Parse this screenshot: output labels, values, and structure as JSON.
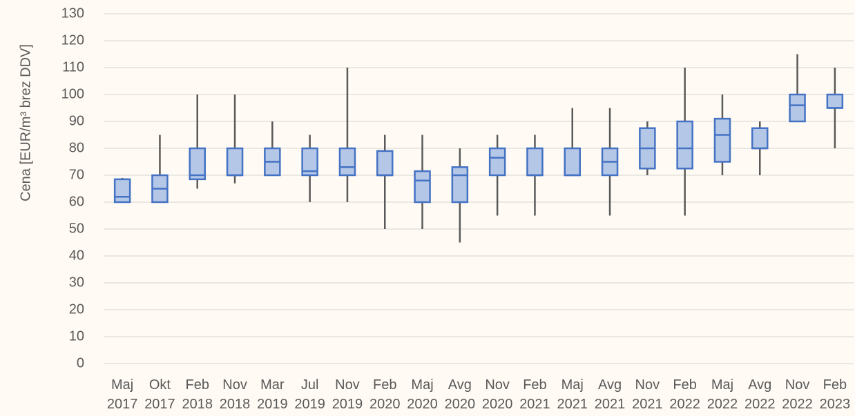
{
  "chart_data": {
    "type": "box",
    "y_label": "Cena [EUR/m³ brez DDV]",
    "categories": [
      "Maj 2017",
      "Okt 2017",
      "Feb 2018",
      "Nov 2018",
      "Mar 2019",
      "Jul 2019",
      "Nov 2019",
      "Feb 2020",
      "Maj 2020",
      "Avg 2020",
      "Nov 2020",
      "Feb 2021",
      "Maj 2021",
      "Avg 2021",
      "Nov 2021",
      "Feb 2022",
      "Maj 2022",
      "Avg 2022",
      "Nov 2022",
      "Feb 2023"
    ],
    "min": [
      60,
      60,
      65,
      67,
      70,
      60,
      60,
      50,
      50,
      45,
      55,
      55,
      70,
      55,
      70,
      55,
      70,
      70,
      90,
      80
    ],
    "q1": [
      60,
      60,
      68.5,
      70,
      70,
      70,
      70,
      70,
      60,
      60,
      70,
      70,
      70,
      70,
      72.5,
      72.5,
      75,
      80,
      90,
      95
    ],
    "median": [
      62,
      65,
      70,
      70,
      75,
      71.5,
      73,
      70,
      68,
      70,
      76.5,
      70,
      70,
      75,
      80,
      80,
      85,
      80,
      96,
      95
    ],
    "q3": [
      68.5,
      70,
      80,
      80,
      80,
      80,
      80,
      79,
      71.5,
      73,
      80,
      80,
      80,
      80,
      87.5,
      90,
      91,
      87.5,
      100,
      100
    ],
    "max": [
      69,
      85,
      100,
      100,
      90,
      85,
      110,
      85,
      85,
      80,
      85,
      85,
      95,
      95,
      90,
      110,
      100,
      90,
      115,
      110
    ],
    "color": "#b4c7e7",
    "edge_color": "#4472c4",
    "whisker_color": "#595959",
    "ylim": [
      0,
      130
    ],
    "yticks": [
      0,
      10,
      20,
      30,
      40,
      50,
      60,
      70,
      80,
      90,
      100,
      110,
      120,
      130
    ],
    "grid": true
  }
}
